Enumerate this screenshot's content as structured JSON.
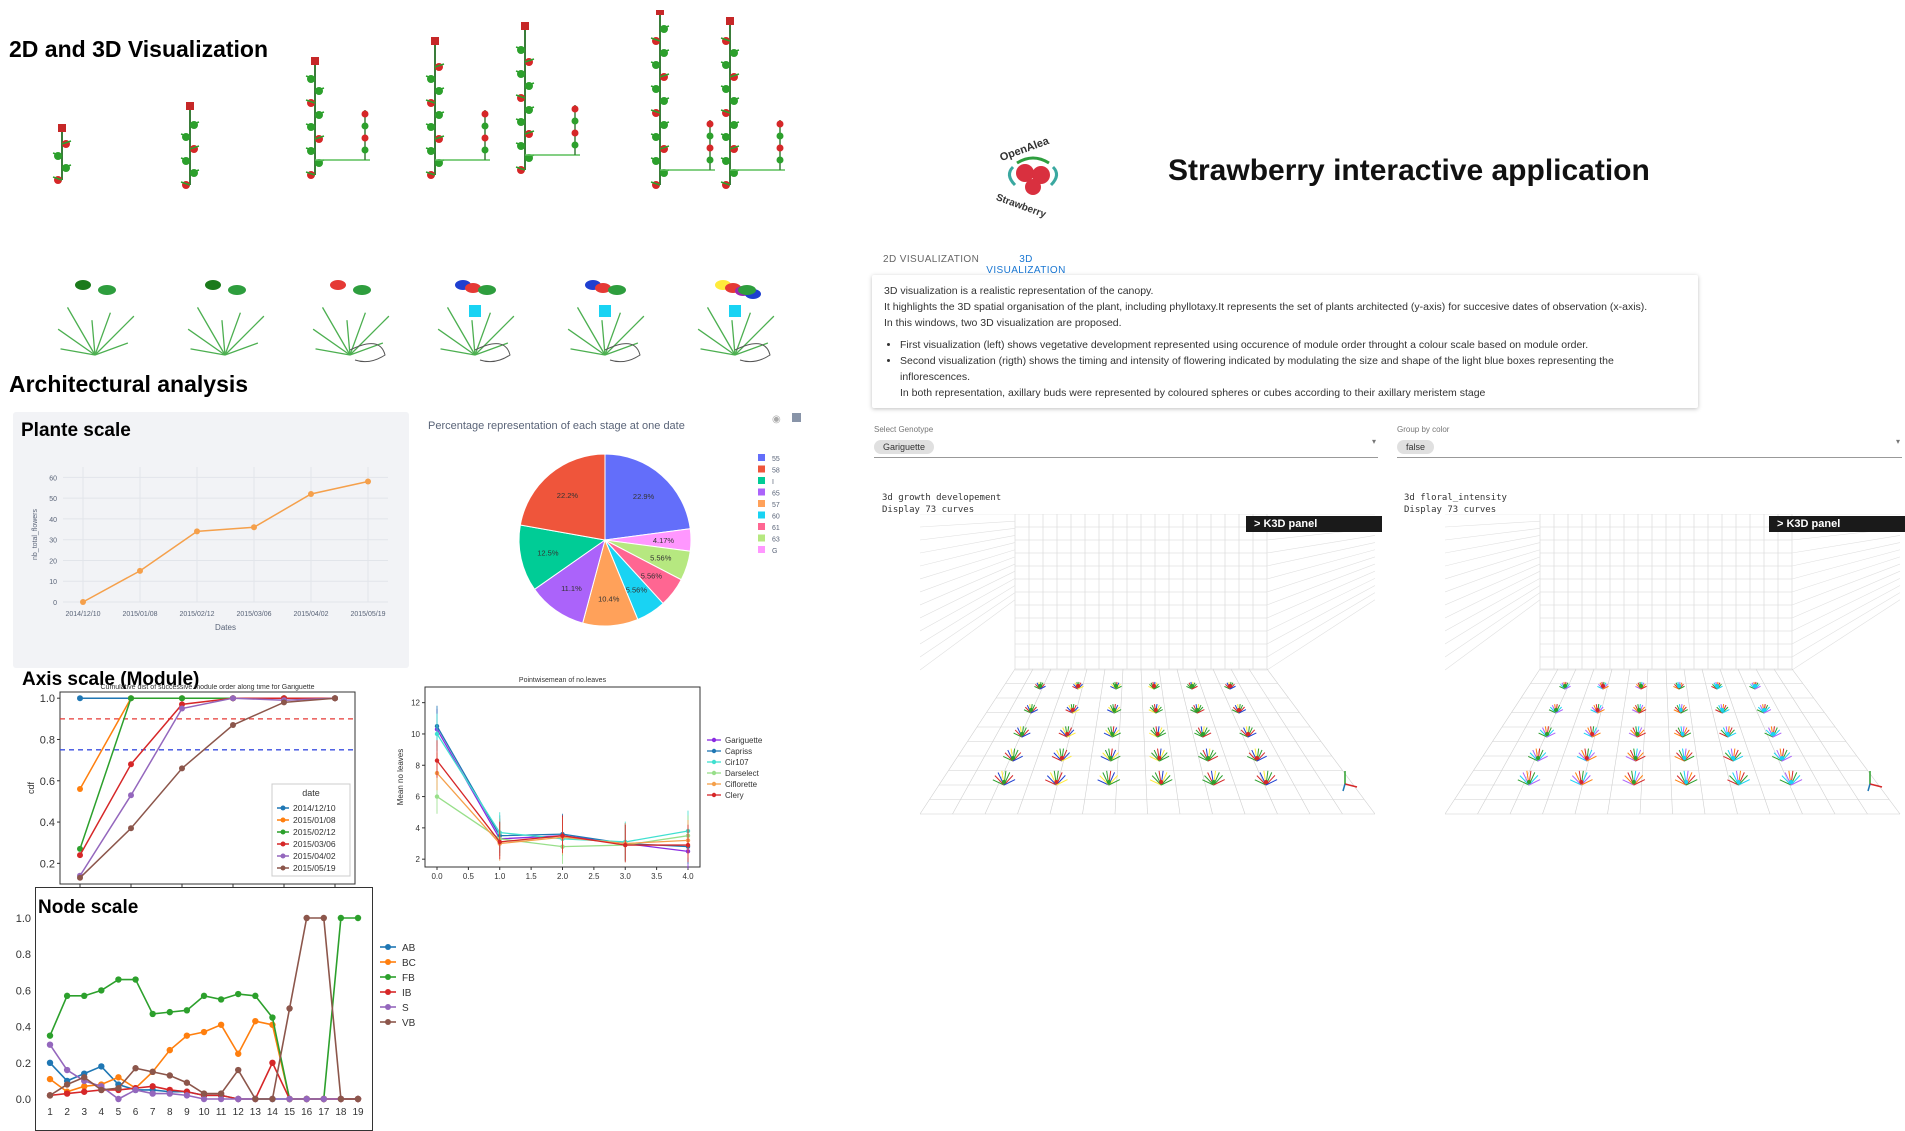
{
  "headings": {
    "viz": "2D and 3D Visualization",
    "arch": "Architectural analysis",
    "plant": "Plante scale",
    "axis": "Axis scale (Module)",
    "node": "Node scale"
  },
  "app": {
    "logo_text_top": "OpenAlea",
    "logo_text_bottom": "Strawberry",
    "title": "Strawberry interactive application",
    "tabs": [
      {
        "label": "2D VISUALIZATION",
        "active": false
      },
      {
        "label": "3D VISUALIZATION",
        "active": true
      }
    ],
    "description": {
      "p1": "3D visualization is a realistic representation of the canopy.",
      "p2": "It highlights the 3D spatial organisation of the plant, including phyllotaxy.It represents the set of plants architected (y-axis) for succesive dates of observation (x-axis).",
      "p3": "In this windows, two 3D visualization are proposed.",
      "b1": "First visualization (left) shows vegetative development represented using occurence of module order throught a colour scale based on module order.",
      "b2": "Second visualization (rigth) shows the timing and intensity of flowering indicated by modulating the size and shape of the light blue boxes representing the inflorescences.",
      "b2b": "In both representation, axillary buds were represented by coloured spheres or cubes according to their axillary meristem stage"
    },
    "genotype": {
      "label": "Select Genotype",
      "value": "Gariguette"
    },
    "groupby": {
      "label": "Group by color",
      "value": "false"
    },
    "view1": {
      "line1": "3d growth developement",
      "line2": "Display 73 curves",
      "panel": "K3D panel"
    },
    "view2": {
      "line1": "3d floral_intensity",
      "line2": "Display 73 curves",
      "panel": "K3D panel"
    }
  },
  "colors": {
    "accent": "#1976d2",
    "orange": "#f5a04b",
    "red": "#e53935",
    "green": "#2e9e3e"
  },
  "chart_data": [
    {
      "type": "line",
      "categories": [
        "2014/12/10",
        "2015/01/08",
        "2015/02/12",
        "2015/03/06",
        "2015/04/02",
        "2015/05/19"
      ],
      "values": [
        0,
        15,
        34,
        36,
        52,
        58
      ],
      "xlabel": "Dates",
      "ylabel": "nb_total_flowers",
      "ylim": [
        0,
        65
      ],
      "yticks": [
        0,
        10,
        20,
        30,
        40,
        50,
        60
      ],
      "grid": true
    },
    {
      "type": "pie",
      "title": "Percentage representation of each stage at one date",
      "legend": [
        "55",
        "58",
        "I",
        "65",
        "57",
        "60",
        "61",
        "63",
        "G"
      ],
      "values": [
        22.9,
        22.2,
        12.5,
        11.1,
        10.4,
        5.56,
        5.56,
        5.56,
        4.17
      ],
      "labels": [
        "22.9%",
        "22.2%",
        "12.5%",
        "11.1%",
        "10.4%",
        "5.56%",
        "5.56%",
        "5.56%",
        "4.17%"
      ],
      "colors": [
        "#636efa",
        "#ef553b",
        "#00cc96",
        "#ab63fa",
        "#ffa15a",
        "#19d3f3",
        "#ff6692",
        "#b6e880",
        "#ff97ff"
      ],
      "order": [
        0,
        8,
        7,
        6,
        5,
        4,
        3,
        2,
        1
      ],
      "legend_placement": "right"
    },
    {
      "type": "line",
      "title": "Cumulative dist of successive module order along time for Gariguette",
      "ylabel": "cdf",
      "x": [
        1,
        2,
        3,
        4,
        5,
        6
      ],
      "ylim": [
        0.1,
        1.03
      ],
      "yticks": [
        0.2,
        0.4,
        0.6,
        0.8,
        1.0
      ],
      "hlines": [
        {
          "y": 0.9,
          "color": "#e53935"
        },
        {
          "y": 0.75,
          "color": "#3b4fe0"
        }
      ],
      "legend_title": "date",
      "series": [
        {
          "name": "2014/12/10",
          "color": "#1f77b4",
          "values": [
            1.0,
            1.0,
            1.0,
            1.0,
            1.0,
            1.0
          ]
        },
        {
          "name": "2015/01/08",
          "color": "#ff7f0e",
          "values": [
            0.56,
            1.0,
            1.0,
            1.0,
            1.0,
            1.0
          ]
        },
        {
          "name": "2015/02/12",
          "color": "#2ca02c",
          "values": [
            0.27,
            1.0,
            1.0,
            1.0,
            1.0,
            1.0
          ]
        },
        {
          "name": "2015/03/06",
          "color": "#d62728",
          "values": [
            0.24,
            0.68,
            0.97,
            1.0,
            1.0,
            1.0
          ]
        },
        {
          "name": "2015/04/02",
          "color": "#9467bd",
          "values": [
            0.14,
            0.53,
            0.95,
            1.0,
            0.99,
            1.0
          ]
        },
        {
          "name": "2015/05/19",
          "color": "#8c564b",
          "values": [
            0.13,
            0.37,
            0.66,
            0.87,
            0.98,
            1.0
          ]
        }
      ],
      "legend_placement": "lower-right"
    },
    {
      "type": "line",
      "title": "Pointwisemean of no.leaves",
      "ylabel": "Mean no leaves",
      "x": [
        0,
        1,
        2,
        3,
        4
      ],
      "xticks": [
        "0.0",
        "0.5",
        "1.0",
        "1.5",
        "2.0",
        "2.5",
        "3.0",
        "3.5",
        "4.0"
      ],
      "yticks": [
        2,
        4,
        6,
        8,
        10,
        12
      ],
      "ylim": [
        1.5,
        13
      ],
      "series": [
        {
          "name": "Gariguette",
          "color": "#8a2be2",
          "values": [
            10.3,
            3.3,
            3.5,
            3.0,
            2.5
          ]
        },
        {
          "name": "Capriss",
          "color": "#1f77b4",
          "values": [
            10.5,
            3.5,
            3.6,
            3.0,
            2.8
          ]
        },
        {
          "name": "Cir107",
          "color": "#40e0d0",
          "values": [
            10.0,
            3.7,
            3.3,
            3.1,
            3.8
          ]
        },
        {
          "name": "Darselect",
          "color": "#98df8a",
          "values": [
            6.0,
            3.3,
            2.8,
            2.9,
            3.5
          ]
        },
        {
          "name": "Ciflorette",
          "color": "#f5a04b",
          "values": [
            7.5,
            3.0,
            3.4,
            3.0,
            3.2
          ]
        },
        {
          "name": "Clery",
          "color": "#d62728",
          "values": [
            8.3,
            3.1,
            3.5,
            2.9,
            2.9
          ]
        }
      ],
      "legend_placement": "right"
    },
    {
      "type": "line",
      "x": [
        1,
        2,
        3,
        4,
        5,
        6,
        7,
        8,
        9,
        10,
        11,
        12,
        13,
        14,
        15,
        16,
        17,
        18,
        19
      ],
      "ylim": [
        0,
        1
      ],
      "yticks": [
        0.0,
        0.2,
        0.4,
        0.6,
        0.8,
        1.0
      ],
      "series": [
        {
          "name": "AB",
          "color": "#1f77b4",
          "values": [
            0.2,
            0.1,
            0.14,
            0.18,
            0.08,
            0.05,
            0.05,
            0.04,
            0.04,
            0.02,
            0.02,
            0,
            0,
            0,
            0,
            0,
            0,
            0,
            0
          ]
        },
        {
          "name": "BC",
          "color": "#ff7f0e",
          "values": [
            0.11,
            0.04,
            0.07,
            0.08,
            0.12,
            0.06,
            0.15,
            0.27,
            0.35,
            0.37,
            0.41,
            0.25,
            0.43,
            0.41,
            0,
            0,
            0,
            0,
            0
          ]
        },
        {
          "name": "FB",
          "color": "#2ca02c",
          "values": [
            0.35,
            0.57,
            0.57,
            0.6,
            0.66,
            0.66,
            0.47,
            0.48,
            0.49,
            0.57,
            0.55,
            0.58,
            0.57,
            0.45,
            0,
            0,
            0,
            1.0,
            1.0
          ]
        },
        {
          "name": "IB",
          "color": "#d62728",
          "values": [
            0.02,
            0.03,
            0.04,
            0.05,
            0.05,
            0.06,
            0.07,
            0.05,
            0.04,
            0.02,
            0.02,
            0,
            0,
            0.2,
            0,
            0,
            0,
            0,
            0
          ]
        },
        {
          "name": "S",
          "color": "#9467bd",
          "values": [
            0.3,
            0.16,
            0.1,
            0.07,
            0,
            0.05,
            0.03,
            0.03,
            0.02,
            0,
            0,
            0,
            0,
            0,
            0,
            0,
            0,
            0,
            0
          ]
        },
        {
          "name": "VB",
          "color": "#8c564b",
          "values": [
            0.02,
            0.08,
            0.12,
            0.05,
            0.06,
            0.17,
            0.15,
            0.13,
            0.09,
            0.03,
            0.03,
            0.16,
            0,
            0,
            0.5,
            1.0,
            1.0,
            0,
            0
          ]
        }
      ],
      "legend_placement": "right"
    }
  ]
}
